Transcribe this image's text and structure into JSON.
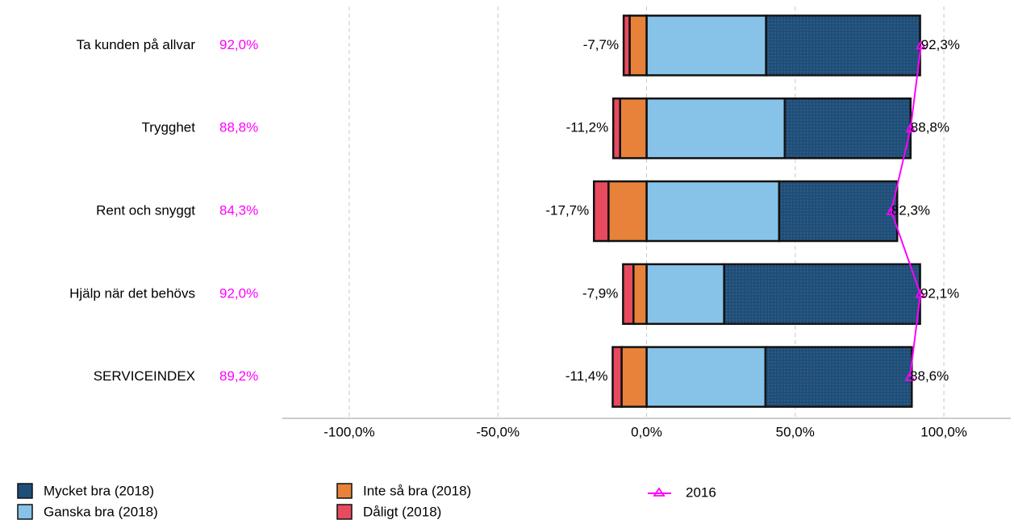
{
  "chart_data": {
    "type": "diverging_bar",
    "categories": [
      "Ta kunden på allvar",
      "Trygghet",
      "Rent och snyggt",
      "Hjälp när det behövs",
      "SERVICEINDEX"
    ],
    "totals": [
      92.0,
      88.8,
      84.3,
      92.0,
      89.2
    ],
    "total_labels": [
      "92,0%",
      "88,8%",
      "84,3%",
      "92,0%",
      "89,2%"
    ],
    "negative_totals": [
      -7.7,
      -11.2,
      -17.7,
      -7.9,
      -11.4
    ],
    "negative_total_labels": [
      "-7,7%",
      "-11,2%",
      "-17,7%",
      "-7,9%",
      "-11,4%"
    ],
    "series": [
      {
        "name": "Mycket bra (2018)",
        "color": "#1f4e79",
        "values": [
          51.8,
          42.3,
          39.7,
          65.9,
          49.2
        ]
      },
      {
        "name": "Ganska bra (2018)",
        "color": "#87c3e8",
        "values": [
          40.2,
          46.5,
          44.6,
          26.1,
          40.0
        ]
      },
      {
        "name": "Inte så bra (2018)",
        "color": "#e8823a",
        "values": [
          -5.7,
          -8.9,
          -12.8,
          -4.4,
          -8.4
        ]
      },
      {
        "name": "Dåligt (2018)",
        "color": "#e84a5f",
        "values": [
          -2.0,
          -2.3,
          -4.9,
          -3.5,
          -3.0
        ]
      },
      {
        "name": "2016",
        "color": "#ff00ff",
        "type": "line",
        "values": [
          92.3,
          88.8,
          82.3,
          92.1,
          88.6
        ],
        "value_labels": [
          "92,3%",
          "88,8%",
          "82,3%",
          "92,1%",
          "88,6%"
        ]
      }
    ],
    "xlim": [
      -122.5,
      122.5
    ],
    "xticks": [
      {
        "value": -100,
        "label": "-100,0%"
      },
      {
        "value": -50,
        "label": "-50,0%"
      },
      {
        "value": 0,
        "label": "0,0%"
      },
      {
        "value": 50,
        "label": "50,0%"
      },
      {
        "value": 100,
        "label": "100,0%"
      }
    ],
    "grid": true
  }
}
